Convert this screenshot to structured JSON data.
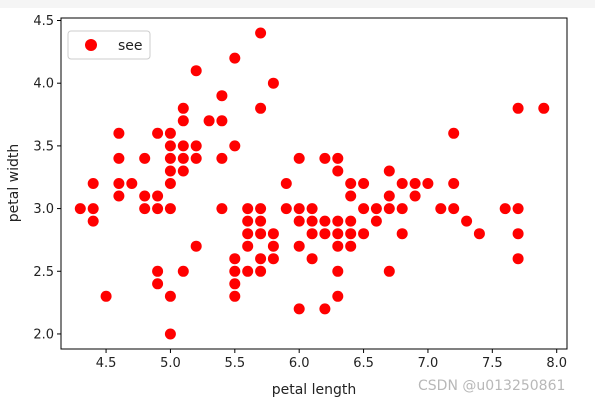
{
  "chart_data": {
    "type": "scatter",
    "xlabel": "petal length",
    "ylabel": "petal width",
    "xlim": [
      4.15,
      8.08
    ],
    "ylim": [
      1.88,
      4.52
    ],
    "xticks": [
      4.5,
      5.0,
      5.5,
      6.0,
      6.5,
      7.0,
      7.5,
      8.0
    ],
    "xtick_labels": [
      "4.5",
      "5.0",
      "5.5",
      "6.0",
      "6.5",
      "7.0",
      "7.5",
      "8.0"
    ],
    "yticks": [
      2.0,
      2.5,
      3.0,
      3.5,
      4.0,
      4.5
    ],
    "ytick_labels": [
      "2.0",
      "2.5",
      "3.0",
      "3.5",
      "4.0",
      "4.5"
    ],
    "grid": false,
    "legend_position": "top-left",
    "series": [
      {
        "name": "see",
        "color": "#ff0000",
        "points": [
          [
            4.3,
            3.0
          ],
          [
            4.4,
            2.9
          ],
          [
            4.4,
            3.0
          ],
          [
            4.4,
            3.2
          ],
          [
            4.5,
            2.3
          ],
          [
            4.6,
            3.1
          ],
          [
            4.6,
            3.2
          ],
          [
            4.6,
            3.4
          ],
          [
            4.6,
            3.6
          ],
          [
            4.7,
            3.2
          ],
          [
            4.8,
            3.0
          ],
          [
            4.8,
            3.1
          ],
          [
            4.8,
            3.4
          ],
          [
            4.9,
            2.4
          ],
          [
            4.9,
            2.5
          ],
          [
            4.9,
            3.0
          ],
          [
            4.9,
            3.1
          ],
          [
            4.9,
            3.6
          ],
          [
            5.0,
            2.0
          ],
          [
            5.0,
            2.3
          ],
          [
            5.0,
            3.0
          ],
          [
            5.0,
            3.2
          ],
          [
            5.0,
            3.3
          ],
          [
            5.0,
            3.4
          ],
          [
            5.0,
            3.5
          ],
          [
            5.0,
            3.6
          ],
          [
            5.1,
            2.5
          ],
          [
            5.1,
            3.3
          ],
          [
            5.1,
            3.4
          ],
          [
            5.1,
            3.5
          ],
          [
            5.1,
            3.7
          ],
          [
            5.1,
            3.8
          ],
          [
            5.2,
            2.7
          ],
          [
            5.2,
            3.4
          ],
          [
            5.2,
            3.5
          ],
          [
            5.2,
            4.1
          ],
          [
            5.3,
            3.7
          ],
          [
            5.4,
            3.0
          ],
          [
            5.4,
            3.4
          ],
          [
            5.4,
            3.7
          ],
          [
            5.4,
            3.9
          ],
          [
            5.5,
            2.3
          ],
          [
            5.5,
            2.4
          ],
          [
            5.5,
            2.5
          ],
          [
            5.5,
            2.6
          ],
          [
            5.5,
            3.5
          ],
          [
            5.5,
            4.2
          ],
          [
            5.6,
            2.5
          ],
          [
            5.6,
            2.7
          ],
          [
            5.6,
            2.8
          ],
          [
            5.6,
            2.9
          ],
          [
            5.6,
            3.0
          ],
          [
            5.7,
            2.5
          ],
          [
            5.7,
            2.6
          ],
          [
            5.7,
            2.8
          ],
          [
            5.7,
            2.9
          ],
          [
            5.7,
            3.0
          ],
          [
            5.7,
            3.8
          ],
          [
            5.7,
            4.4
          ],
          [
            5.8,
            2.6
          ],
          [
            5.8,
            2.7
          ],
          [
            5.8,
            2.8
          ],
          [
            5.8,
            4.0
          ],
          [
            5.9,
            3.0
          ],
          [
            5.9,
            3.2
          ],
          [
            6.0,
            2.2
          ],
          [
            6.0,
            2.7
          ],
          [
            6.0,
            2.9
          ],
          [
            6.0,
            3.0
          ],
          [
            6.0,
            3.4
          ],
          [
            6.1,
            2.6
          ],
          [
            6.1,
            2.8
          ],
          [
            6.1,
            2.9
          ],
          [
            6.1,
            3.0
          ],
          [
            6.2,
            2.2
          ],
          [
            6.2,
            2.8
          ],
          [
            6.2,
            2.9
          ],
          [
            6.2,
            3.4
          ],
          [
            6.3,
            2.3
          ],
          [
            6.3,
            2.5
          ],
          [
            6.3,
            2.7
          ],
          [
            6.3,
            2.8
          ],
          [
            6.3,
            2.9
          ],
          [
            6.3,
            3.3
          ],
          [
            6.3,
            3.4
          ],
          [
            6.4,
            2.7
          ],
          [
            6.4,
            2.8
          ],
          [
            6.4,
            2.9
          ],
          [
            6.4,
            3.1
          ],
          [
            6.4,
            3.2
          ],
          [
            6.5,
            2.8
          ],
          [
            6.5,
            3.0
          ],
          [
            6.5,
            3.2
          ],
          [
            6.6,
            2.9
          ],
          [
            6.6,
            3.0
          ],
          [
            6.7,
            2.5
          ],
          [
            6.7,
            3.0
          ],
          [
            6.7,
            3.1
          ],
          [
            6.7,
            3.3
          ],
          [
            6.8,
            2.8
          ],
          [
            6.8,
            3.0
          ],
          [
            6.8,
            3.2
          ],
          [
            6.9,
            3.1
          ],
          [
            6.9,
            3.2
          ],
          [
            7.0,
            3.2
          ],
          [
            7.1,
            3.0
          ],
          [
            7.2,
            3.0
          ],
          [
            7.2,
            3.2
          ],
          [
            7.2,
            3.6
          ],
          [
            7.3,
            2.9
          ],
          [
            7.4,
            2.8
          ],
          [
            7.6,
            3.0
          ],
          [
            7.7,
            2.6
          ],
          [
            7.7,
            2.8
          ],
          [
            7.7,
            3.0
          ],
          [
            7.7,
            3.8
          ],
          [
            7.9,
            3.8
          ]
        ]
      }
    ]
  },
  "watermark": "CSDN @u013250861"
}
